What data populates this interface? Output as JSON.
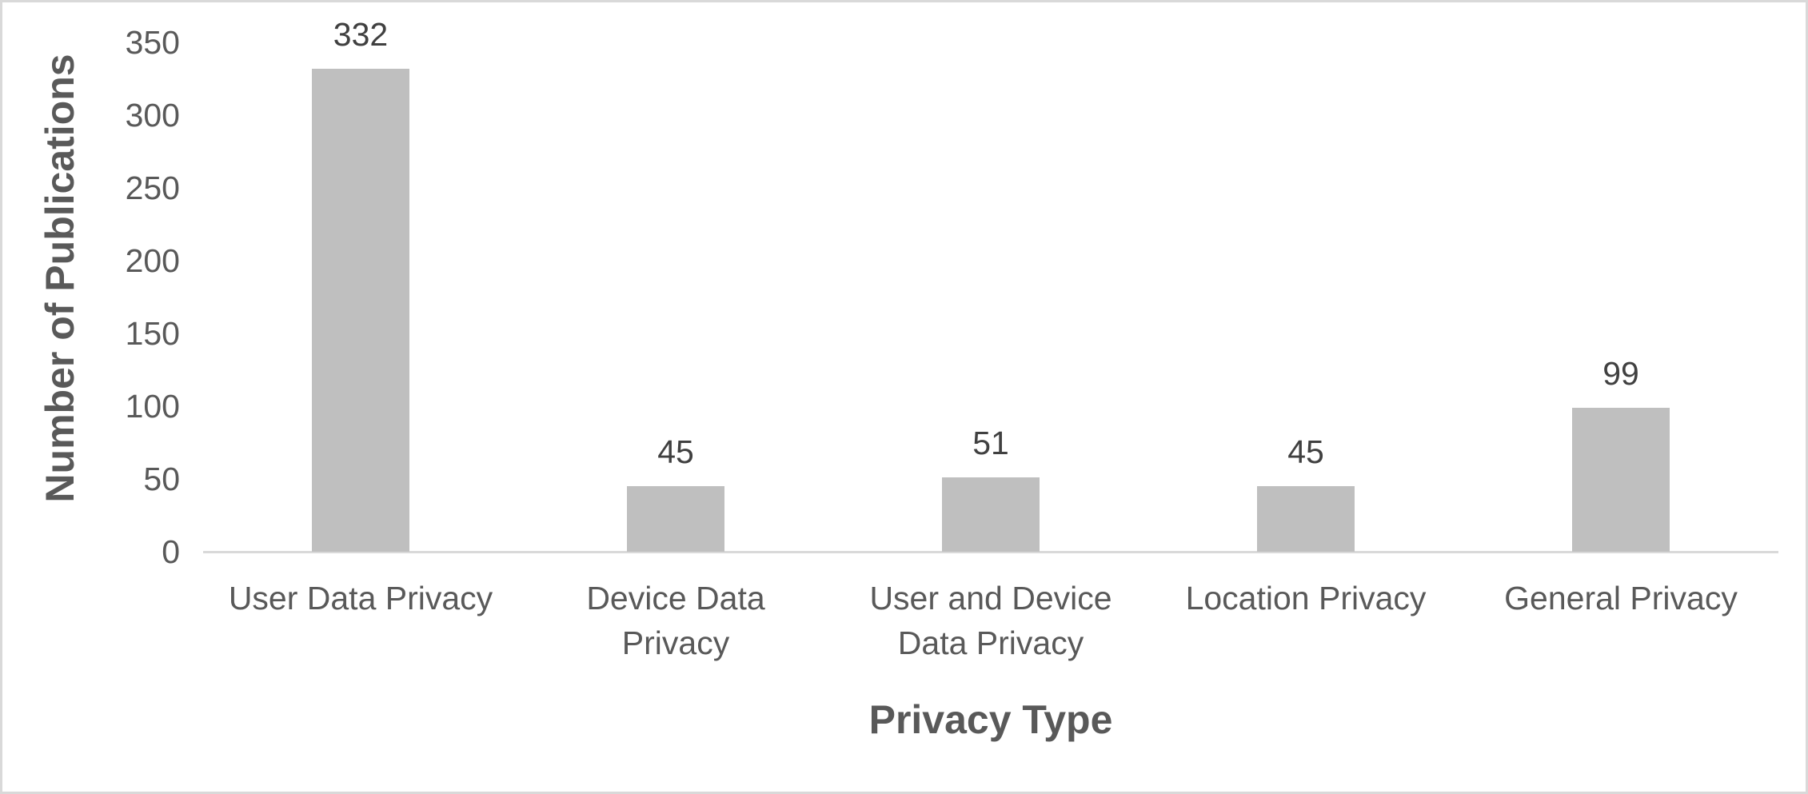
{
  "chart_data": {
    "type": "bar",
    "title": "",
    "categories": [
      "User Data Privacy",
      "Device Data\nPrivacy",
      "User and Device\nData Privacy",
      "Location Privacy",
      "General Privacy"
    ],
    "values": [
      332,
      45,
      51,
      45,
      99
    ],
    "data_labels": [
      "332",
      "45",
      "51",
      "45",
      "99"
    ],
    "xlabel": "Privacy Type",
    "ylabel": "Number of Publications",
    "ylim": [
      0,
      350
    ],
    "yticks": [
      0,
      50,
      100,
      150,
      200,
      250,
      300,
      350
    ],
    "ytick_labels": [
      "0",
      "50",
      "100",
      "150",
      "200",
      "250",
      "300",
      "350"
    ],
    "grid": false,
    "legend": "none",
    "colors": {
      "bar_fill": "#bfbfbf",
      "axis_line": "#d9d9d9",
      "frame_border": "#d9d9d9",
      "tick_label_text": "#595959",
      "category_label_text": "#595959",
      "data_label_text": "#404040",
      "axis_title_text": "#595959",
      "background": "#ffffff"
    }
  }
}
